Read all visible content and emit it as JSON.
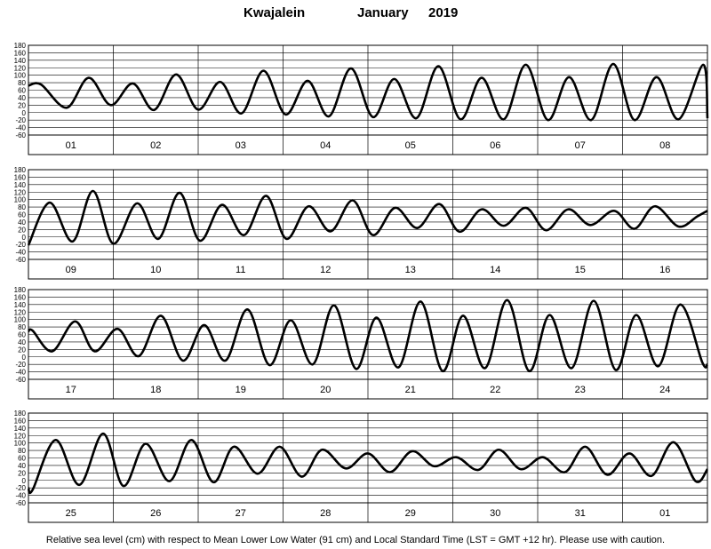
{
  "header": {
    "station": "Kwajalein",
    "month": "January",
    "year": "2019"
  },
  "footer": {
    "note": "Relative sea level (cm) with respect to Mean Lower Low Water (91 cm) and Local Standard Time (LST = GMT +12 hr). Please use with caution."
  },
  "chart_data": {
    "type": "line",
    "title": "Kwajalein          January   2019",
    "ylabel": "",
    "xlabel": "",
    "units": "cm",
    "ylim": [
      -60,
      180
    ],
    "yticks": [
      180,
      160,
      140,
      120,
      100,
      80,
      60,
      40,
      20,
      0,
      -20,
      -40,
      -60
    ],
    "grid": true,
    "line_color": "#000000",
    "panels": [
      {
        "days": [
          "01",
          "02",
          "03",
          "04",
          "05",
          "06",
          "07",
          "08"
        ],
        "series": [
          {
            "x_days": [
              0.0,
              0.15,
              0.45,
              0.71,
              0.97,
              1.23,
              1.48,
              1.74,
              2.0,
              2.26,
              2.51,
              2.77,
              3.03,
              3.29,
              3.54,
              3.8,
              4.06,
              4.31,
              4.57,
              4.83,
              5.09,
              5.34,
              5.6,
              5.86,
              6.12,
              6.37,
              6.63,
              6.89,
              7.14,
              7.4,
              7.66,
              7.95,
              8.0
            ],
            "level_cm": [
              72,
              75,
              13,
              93,
              20,
              78,
              7,
              102,
              8,
              82,
              -2,
              112,
              -5,
              85,
              -10,
              118,
              -12,
              90,
              -15,
              124,
              -18,
              93,
              -18,
              128,
              -20,
              95,
              -20,
              130,
              -20,
              95,
              -18,
              128,
              -15
            ]
          }
        ]
      },
      {
        "days": [
          "09",
          "10",
          "11",
          "12",
          "13",
          "14",
          "15",
          "16"
        ],
        "series": [
          {
            "x_days": [
              0.0,
              0.25,
              0.52,
              0.76,
              1.0,
              1.28,
              1.53,
              1.78,
              2.02,
              2.28,
              2.54,
              2.8,
              3.04,
              3.3,
              3.56,
              3.82,
              4.06,
              4.32,
              4.58,
              4.84,
              5.08,
              5.34,
              5.6,
              5.86,
              6.1,
              6.36,
              6.62,
              6.9,
              7.14,
              7.38,
              7.66,
              7.88,
              8.0
            ],
            "level_cm": [
              -22,
              92,
              -12,
              123,
              -18,
              90,
              -5,
              118,
              -10,
              86,
              5,
              110,
              -5,
              82,
              15,
              98,
              5,
              78,
              24,
              88,
              14,
              74,
              30,
              78,
              18,
              74,
              32,
              70,
              22,
              82,
              28,
              55,
              70
            ]
          }
        ]
      },
      {
        "days": [
          "17",
          "18",
          "19",
          "20",
          "21",
          "22",
          "23",
          "24"
        ],
        "series": [
          {
            "x_days": [
              0.0,
              0.05,
              0.28,
              0.55,
              0.78,
              1.05,
              1.3,
              1.56,
              1.82,
              2.07,
              2.32,
              2.58,
              2.84,
              3.09,
              3.35,
              3.6,
              3.86,
              4.1,
              4.36,
              4.62,
              4.88,
              5.12,
              5.38,
              5.64,
              5.9,
              6.14,
              6.4,
              6.66,
              6.92,
              7.16,
              7.42,
              7.68,
              7.94,
              8.0
            ],
            "level_cm": [
              68,
              70,
              15,
              95,
              15,
              75,
              2,
              110,
              -10,
              85,
              -10,
              127,
              -22,
              98,
              -20,
              138,
              -32,
              105,
              -28,
              148,
              -38,
              110,
              -30,
              152,
              -38,
              112,
              -30,
              150,
              -35,
              112,
              -25,
              140,
              -15,
              -20
            ]
          }
        ]
      },
      {
        "days": [
          "25",
          "26",
          "27",
          "28",
          "29",
          "30",
          "31",
          "01"
        ],
        "series": [
          {
            "x_days": [
              0.0,
              0.05,
              0.32,
              0.6,
              0.88,
              1.12,
              1.38,
              1.66,
              1.92,
              2.18,
              2.42,
              2.7,
              2.96,
              3.22,
              3.46,
              3.74,
              4.0,
              4.26,
              4.52,
              4.78,
              5.04,
              5.3,
              5.54,
              5.8,
              6.06,
              6.32,
              6.56,
              6.82,
              7.08,
              7.34,
              7.6,
              7.86,
              8.0
            ],
            "level_cm": [
              -20,
              -25,
              108,
              -12,
              125,
              -15,
              98,
              -2,
              108,
              -5,
              90,
              18,
              90,
              10,
              82,
              32,
              72,
              22,
              78,
              38,
              62,
              28,
              82,
              30,
              62,
              22,
              90,
              15,
              72,
              12,
              102,
              -2,
              30
            ]
          }
        ]
      }
    ]
  }
}
